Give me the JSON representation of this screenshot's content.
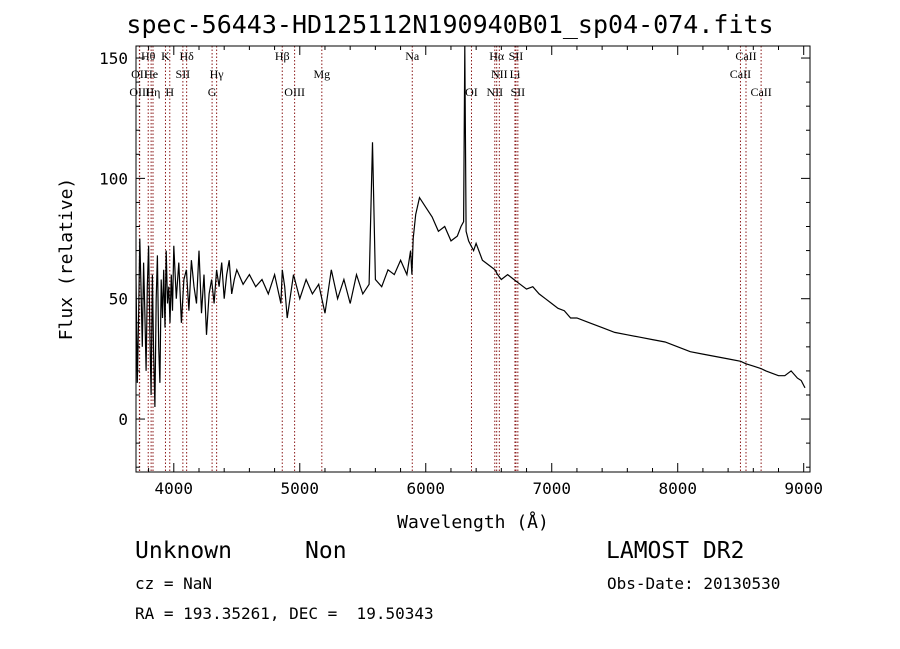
{
  "page": {
    "title": "spec-56443-HD125112N190940B01_sp04-074.fits",
    "class_label": "Unknown",
    "subclass_label": "Non",
    "survey": "LAMOST DR2",
    "cz_text": "cz = NaN",
    "obs_date_text": "Obs-Date: 20130530",
    "coords_text": "RA = 193.35261, DEC =  19.50343"
  },
  "chart_data": {
    "type": "line",
    "title": "spec-56443-HD125112N190940B01_sp04-074.fits",
    "xlabel": "Wavelength (Å)",
    "ylabel": "Flux (relative)",
    "xlim": [
      3700,
      9050
    ],
    "ylim": [
      -22,
      155
    ],
    "xticks": [
      4000,
      5000,
      6000,
      7000,
      8000,
      9000
    ],
    "yticks": [
      0,
      50,
      100,
      150
    ],
    "grid": false,
    "line_color": "#000000",
    "marker_color": "#8b1a1a",
    "spectrum": {
      "x": [
        3700,
        3710,
        3720,
        3730,
        3740,
        3750,
        3760,
        3770,
        3780,
        3790,
        3800,
        3810,
        3820,
        3830,
        3840,
        3850,
        3860,
        3870,
        3880,
        3890,
        3900,
        3910,
        3920,
        3930,
        3940,
        3950,
        3960,
        3970,
        3980,
        3990,
        4000,
        4020,
        4040,
        4060,
        4080,
        4100,
        4120,
        4140,
        4160,
        4180,
        4200,
        4220,
        4240,
        4260,
        4280,
        4300,
        4320,
        4340,
        4360,
        4380,
        4400,
        4420,
        4440,
        4460,
        4480,
        4500,
        4550,
        4600,
        4650,
        4700,
        4750,
        4800,
        4850,
        4861,
        4880,
        4900,
        4950,
        5000,
        5050,
        5100,
        5150,
        5200,
        5250,
        5300,
        5350,
        5400,
        5450,
        5500,
        5550,
        5577,
        5600,
        5650,
        5700,
        5750,
        5800,
        5850,
        5880,
        5890,
        5900,
        5920,
        5950,
        6000,
        6050,
        6100,
        6150,
        6200,
        6250,
        6280,
        6300,
        6310,
        6320,
        6340,
        6360,
        6380,
        6400,
        6450,
        6500,
        6550,
        6570,
        6600,
        6650,
        6700,
        6750,
        6800,
        6850,
        6900,
        6950,
        7000,
        7050,
        7100,
        7150,
        7200,
        7300,
        7400,
        7500,
        7600,
        7700,
        7800,
        7900,
        8000,
        8100,
        8200,
        8300,
        8400,
        8500,
        8540,
        8600,
        8660,
        8700,
        8750,
        8800,
        8850,
        8900,
        8950,
        8980,
        9000,
        9010
      ],
      "y": [
        60,
        15,
        40,
        75,
        55,
        30,
        65,
        45,
        20,
        55,
        72,
        35,
        10,
        60,
        28,
        5,
        50,
        68,
        30,
        15,
        58,
        42,
        62,
        38,
        70,
        48,
        55,
        40,
        60,
        45,
        72,
        50,
        65,
        40,
        58,
        62,
        45,
        66,
        55,
        48,
        70,
        44,
        60,
        35,
        52,
        58,
        48,
        62,
        55,
        65,
        50,
        60,
        66,
        52,
        58,
        62,
        56,
        60,
        55,
        58,
        52,
        60,
        48,
        62,
        55,
        42,
        60,
        50,
        58,
        52,
        56,
        44,
        62,
        50,
        58,
        48,
        60,
        52,
        56,
        115,
        58,
        55,
        62,
        60,
        66,
        60,
        70,
        60,
        75,
        85,
        92,
        88,
        84,
        78,
        80,
        74,
        76,
        80,
        82,
        155,
        78,
        74,
        72,
        70,
        73,
        66,
        64,
        62,
        60,
        58,
        60,
        58,
        56,
        54,
        55,
        52,
        50,
        48,
        46,
        45,
        42,
        42,
        40,
        38,
        36,
        35,
        34,
        33,
        32,
        30,
        28,
        27,
        26,
        25,
        24,
        23,
        22,
        21,
        20,
        19,
        18,
        18,
        20,
        17,
        16,
        14,
        13
      ]
    },
    "lines": [
      {
        "label": "Hθ",
        "x": 3797,
        "row": 0
      },
      {
        "label": "K",
        "x": 3934,
        "row": 0
      },
      {
        "label": "Hδ",
        "x": 4102,
        "row": 0
      },
      {
        "label": "Hβ",
        "x": 4861,
        "row": 0
      },
      {
        "label": "Na",
        "x": 5893,
        "row": 0
      },
      {
        "label": "Hα",
        "x": 6563,
        "row": 0
      },
      {
        "label": "SII",
        "x": 6716,
        "row": 0
      },
      {
        "label": "CaII",
        "x": 8542,
        "row": 0
      },
      {
        "label": "OII",
        "x": 3727,
        "row": 1
      },
      {
        "label": "He",
        "x": 3820,
        "row": 1
      },
      {
        "label": "SII",
        "x": 4072,
        "row": 1
      },
      {
        "label": "Hγ",
        "x": 4340,
        "row": 1
      },
      {
        "label": "Mg",
        "x": 5175,
        "row": 1
      },
      {
        "label": "NII",
        "x": 6584,
        "row": 1
      },
      {
        "label": "Li",
        "x": 6708,
        "row": 1
      },
      {
        "label": "CaII",
        "x": 8498,
        "row": 1
      },
      {
        "label": "OIII",
        "x": 3729,
        "row": 2
      },
      {
        "label": "Hη",
        "x": 3835,
        "row": 2
      },
      {
        "label": "H",
        "x": 3968,
        "row": 2
      },
      {
        "label": "G",
        "x": 4304,
        "row": 2
      },
      {
        "label": "OIII",
        "x": 4959,
        "row": 2
      },
      {
        "label": "OI",
        "x": 6363,
        "row": 2
      },
      {
        "label": "NII",
        "x": 6548,
        "row": 2
      },
      {
        "label": "SII",
        "x": 6731,
        "row": 2
      },
      {
        "label": "CaII",
        "x": 8662,
        "row": 2
      }
    ]
  }
}
